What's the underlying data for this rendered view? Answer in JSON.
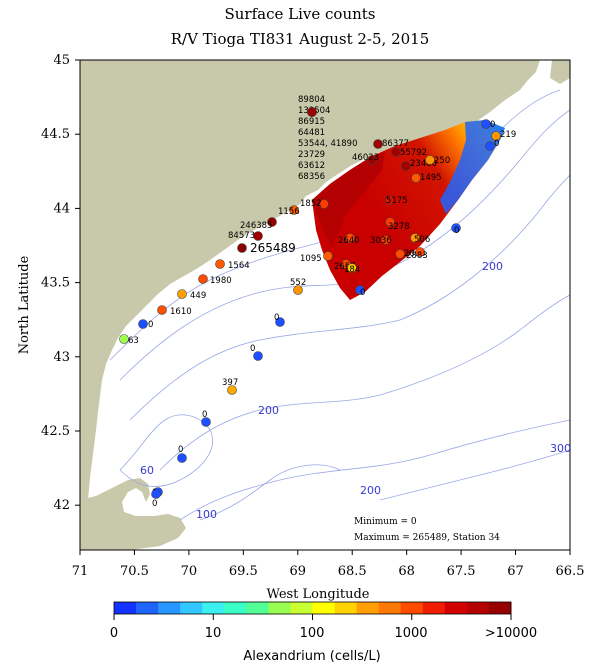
{
  "title_line1": "Surface Live counts",
  "title_line2": "R/V Tioga TI831 August 2-5, 2015",
  "x_axis_title": "West Longitude",
  "y_axis_title": "North Latitude",
  "x_ticks": [
    "71",
    "70.5",
    "70",
    "69.5",
    "69",
    "68.5",
    "68",
    "67.5",
    "67",
    "66.5"
  ],
  "y_ticks": [
    "45",
    "44.5",
    "44",
    "43.5",
    "43",
    "42.5",
    "42"
  ],
  "minimum_note": "Minimum = 0",
  "maximum_note": "Maximum = 265489, Station 34",
  "depth_labels": [
    "200",
    "200",
    "200",
    "300",
    "60",
    "100",
    "200"
  ],
  "colorbar": {
    "title": "Alexandrium (cells/L)",
    "labels": [
      "0",
      "10",
      "100",
      "1000",
      ">10000"
    ],
    "colors": [
      "#1432ff",
      "#1e64ff",
      "#2896ff",
      "#32c8ff",
      "#3cf0f0",
      "#3cffc8",
      "#50ff96",
      "#96ff50",
      "#c8ff32",
      "#ffff00",
      "#ffd200",
      "#ffa000",
      "#ff7800",
      "#ff4b00",
      "#f01e00",
      "#d20000",
      "#b40000",
      "#960000"
    ]
  },
  "stations": [
    {
      "label": "89804",
      "color": "#a00000"
    },
    {
      "label": "133504",
      "color": "#a00000"
    },
    {
      "label": "86915",
      "color": "#a00000"
    },
    {
      "label": "64481",
      "color": "#a00000"
    },
    {
      "label": "53544, 41890",
      "color": "#a00000"
    },
    {
      "label": "23729",
      "color": "#a00000"
    },
    {
      "label": "63612",
      "color": "#a00000"
    },
    {
      "label": "68356",
      "color": "#a00000"
    },
    {
      "label": "86377",
      "color": "#a00000"
    },
    {
      "label": "55792",
      "color": "#a00000"
    },
    {
      "label": "46023",
      "color": "#a00000"
    },
    {
      "label": "23460",
      "color": "#a00000"
    },
    {
      "label": "250",
      "color": "#ff9600"
    },
    {
      "label": "1495",
      "color": "#ff5a00"
    },
    {
      "label": "0",
      "color": "#1e50ff"
    },
    {
      "label": "219",
      "color": "#ff9600"
    },
    {
      "label": "0",
      "color": "#1e50ff"
    },
    {
      "label": "5175",
      "color": "#dc1400"
    },
    {
      "label": "1852",
      "color": "#ff3c00"
    },
    {
      "label": "1156",
      "color": "#ff5a00"
    },
    {
      "label": "246385",
      "color": "#960000"
    },
    {
      "label": "84573",
      "color": "#a00000"
    },
    {
      "label": "265489",
      "color": "#8c0000"
    },
    {
      "label": "1564",
      "color": "#ff5a00"
    },
    {
      "label": "1980",
      "color": "#ff4b00"
    },
    {
      "label": "449",
      "color": "#ffa000"
    },
    {
      "label": "1610",
      "color": "#ff5000"
    },
    {
      "label": "0",
      "color": "#1e50ff"
    },
    {
      "label": "63",
      "color": "#a0ff50"
    },
    {
      "label": "552",
      "color": "#ff9600"
    },
    {
      "label": "3278",
      "color": "#ff3c00"
    },
    {
      "label": "2093",
      "color": "#ff4b00"
    },
    {
      "label": "3036",
      "color": "#ff3c00"
    },
    {
      "label": "506",
      "color": "#ff9600"
    },
    {
      "label": "2640",
      "color": "#ff4b00"
    },
    {
      "label": "2883",
      "color": "#ff4b00"
    },
    {
      "label": "1095",
      "color": "#ff5a00"
    },
    {
      "label": "2657",
      "color": "#ff4b00"
    },
    {
      "label": "184",
      "color": "#ffc800"
    },
    {
      "label": "0",
      "color": "#1e50ff"
    },
    {
      "label": "0",
      "color": "#1e50ff"
    },
    {
      "label": "0",
      "color": "#1e50ff"
    },
    {
      "label": "0",
      "color": "#1e50ff"
    },
    {
      "label": "397",
      "color": "#ffaa00"
    },
    {
      "label": "0",
      "color": "#1e50ff"
    },
    {
      "label": "0",
      "color": "#1e50ff"
    },
    {
      "label": "0",
      "color": "#1e50ff"
    },
    {
      "label": "0",
      "color": "#1e50ff"
    }
  ]
}
